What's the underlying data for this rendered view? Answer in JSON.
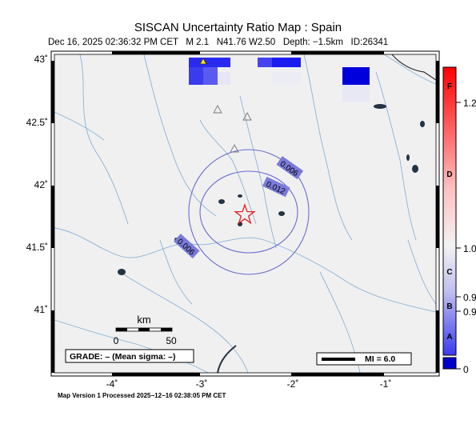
{
  "header": {
    "title": "SISCAN Uncertainty Ratio Map : Spain",
    "subtitle": "Dec 16, 2025 02:36:32 PM CET   M 2.1   N41.76 W2.50   Depth: −1.5km   ID:26341"
  },
  "axes": {
    "x_ticks": [
      "-4˚",
      "-3˚",
      "-2˚",
      "-1˚"
    ],
    "y_ticks": [
      "43˚",
      "42.5˚",
      "42˚",
      "41.5˚",
      "41˚"
    ]
  },
  "contours": [
    {
      "label": "0.006"
    },
    {
      "label": "0.012"
    },
    {
      "label": "0.006"
    }
  ],
  "scalebar": {
    "unit": "km",
    "ticks": [
      "0",
      "50"
    ]
  },
  "grade_box": "GRADE: – (Mean sigma: –)",
  "mi_box": "MI = 6.0",
  "colorbar": {
    "letters": [
      "F",
      "D",
      "C",
      "B",
      "A"
    ],
    "values": [
      "1.2",
      "1.0",
      "0.9",
      "0.9",
      "0"
    ],
    "colors": {
      "top": "#ff0000",
      "mid": "#f2f2f2",
      "bottom": "#0000cc"
    }
  },
  "footer": "Map Version 1 Processed 2025−12−16 02:38:05 PM CET",
  "colors": {
    "land": "#f0f0f0",
    "river": "#8ab4d8",
    "contour": "#6b6bd0",
    "epicenter": "#e02020"
  }
}
